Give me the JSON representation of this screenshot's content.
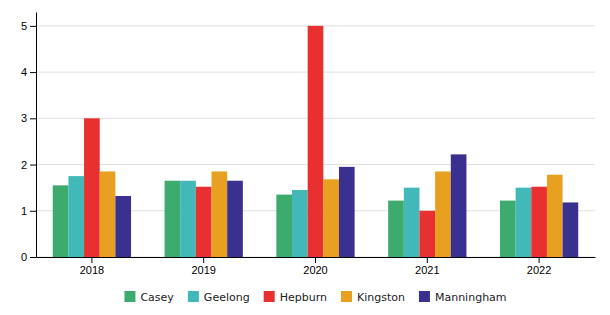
{
  "chart_data": {
    "type": "bar",
    "categories": [
      "2018",
      "2019",
      "2020",
      "2021",
      "2022"
    ],
    "series": [
      {
        "name": "Casey",
        "color": "#3daa6e",
        "values": [
          1.55,
          1.65,
          1.35,
          1.22,
          1.22
        ]
      },
      {
        "name": "Geelong",
        "color": "#42b8b8",
        "values": [
          1.75,
          1.65,
          1.45,
          1.5,
          1.5
        ]
      },
      {
        "name": "Hepburn",
        "color": "#e83030",
        "values": [
          3.0,
          1.52,
          5.0,
          1.0,
          1.52
        ]
      },
      {
        "name": "Kingston",
        "color": "#e8a020",
        "values": [
          1.85,
          1.85,
          1.68,
          1.85,
          1.78
        ]
      },
      {
        "name": "Manningham",
        "color": "#3a3090",
        "values": [
          1.32,
          1.65,
          1.95,
          2.22,
          1.18
        ]
      }
    ],
    "ylim": [
      0,
      5.3
    ],
    "yticks": [
      0,
      1,
      2,
      3,
      4,
      5
    ],
    "grid": true,
    "legend": "bottom"
  }
}
